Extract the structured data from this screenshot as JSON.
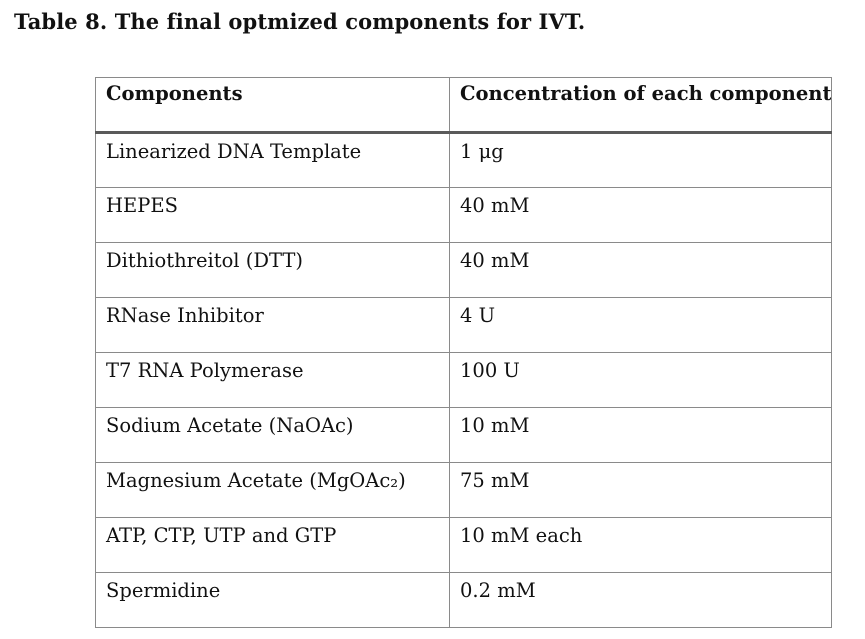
{
  "caption": "Table 8. The final optmized components for IVT.",
  "table": {
    "headers": [
      "Components",
      "Concentration of each component"
    ],
    "rows": [
      {
        "component": "Linearized DNA Template",
        "concentration": "1 μg"
      },
      {
        "component": "HEPES",
        "concentration": "40 mM"
      },
      {
        "component": "Dithiothreitol (DTT)",
        "concentration": "40 mM"
      },
      {
        "component": "RNase Inhibitor",
        "concentration": "4 U"
      },
      {
        "component": "T7 RNA Polymerase",
        "concentration": "100 U"
      },
      {
        "component": "Sodium Acetate (NaOAc)",
        "concentration": "10 mM"
      },
      {
        "component": "Magnesium Acetate (MgOAc₂)",
        "concentration": "75 mM"
      },
      {
        "component": "ATP, CTP, UTP and GTP",
        "concentration": "10 mM each"
      },
      {
        "component": "Spermidine",
        "concentration": "0.2 mM"
      }
    ]
  }
}
